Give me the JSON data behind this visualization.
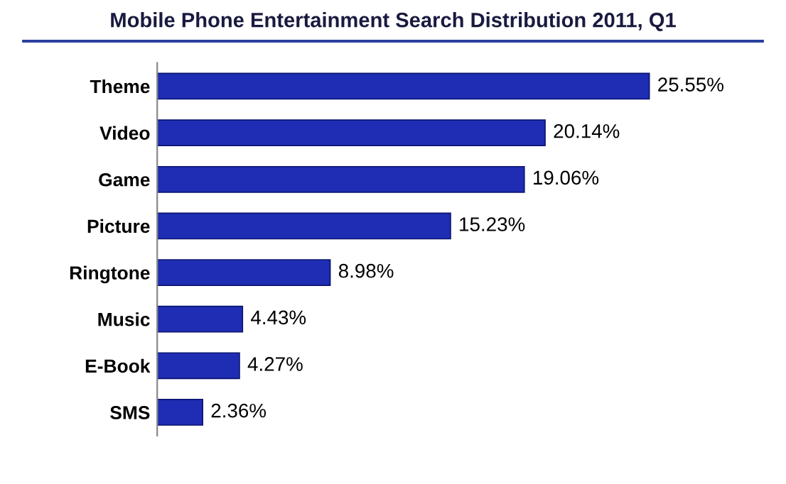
{
  "chart_data": {
    "type": "bar",
    "orientation": "horizontal",
    "title": "Mobile Phone Entertainment Search Distribution 2011, Q1",
    "categories": [
      "Theme",
      "Video",
      "Game",
      "Picture",
      "Ringtone",
      "Music",
      "E-Book",
      "SMS"
    ],
    "values": [
      25.55,
      20.14,
      19.06,
      15.23,
      8.98,
      4.43,
      4.27,
      2.36
    ],
    "value_labels": [
      "25.55%",
      "20.14%",
      "19.06%",
      "15.23%",
      "8.98%",
      "4.43%",
      "4.27%",
      "2.36%"
    ],
    "color": "#1f2db4",
    "grid": false,
    "legend": false
  }
}
